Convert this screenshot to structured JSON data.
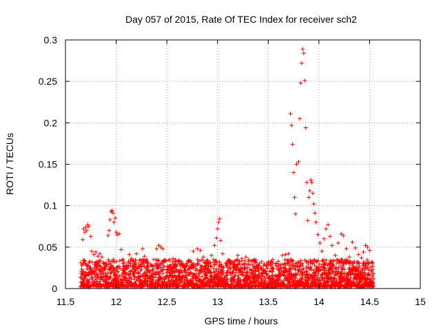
{
  "chart_data": {
    "type": "scatter",
    "title": "Day 057 of 2015, Rate Of TEC Index for receiver sch2",
    "xlabel": "GPS time / hours",
    "ylabel": "ROTI / TECUs",
    "xlim": [
      11.5,
      15
    ],
    "ylim": [
      0,
      0.3
    ],
    "x_ticks": [
      11.5,
      12,
      12.5,
      13,
      13.5,
      14,
      14.5,
      15
    ],
    "x_tick_labels": [
      "11.5",
      "12",
      "12.5",
      "13",
      "13.5",
      "14",
      "14.5",
      "15"
    ],
    "y_ticks": [
      0,
      0.05,
      0.1,
      0.15,
      0.2,
      0.25,
      0.3
    ],
    "y_tick_labels": [
      "0",
      "0.05",
      "0.1",
      "0.15",
      "0.2",
      "0.25",
      "0.3"
    ],
    "grid": true,
    "marker": "plus",
    "marker_color": "#ff0000",
    "series": [
      {
        "name": "ROTI",
        "points": [
          [
            11.66,
            0.028
          ],
          [
            11.67,
            0.059
          ],
          [
            11.68,
            0.072
          ],
          [
            11.69,
            0.068
          ],
          [
            11.7,
            0.074
          ],
          [
            11.71,
            0.07
          ],
          [
            11.72,
            0.077
          ],
          [
            11.73,
            0.075
          ],
          [
            11.75,
            0.063
          ],
          [
            11.76,
            0.045
          ],
          [
            11.78,
            0.041
          ],
          [
            11.8,
            0.044
          ],
          [
            11.82,
            0.039
          ],
          [
            11.84,
            0.042
          ],
          [
            11.86,
            0.038
          ],
          [
            11.88,
            0.03
          ],
          [
            11.9,
            0.026
          ],
          [
            11.92,
            0.064
          ],
          [
            11.93,
            0.07
          ],
          [
            11.94,
            0.083
          ],
          [
            11.95,
            0.093
          ],
          [
            11.96,
            0.094
          ],
          [
            11.97,
            0.091
          ],
          [
            11.98,
            0.08
          ],
          [
            11.99,
            0.085
          ],
          [
            12.0,
            0.068
          ],
          [
            12.01,
            0.065
          ],
          [
            12.03,
            0.066
          ],
          [
            12.05,
            0.047
          ],
          [
            12.07,
            0.035
          ],
          [
            12.1,
            0.028
          ],
          [
            12.13,
            0.041
          ],
          [
            12.15,
            0.036
          ],
          [
            12.18,
            0.03
          ],
          [
            12.2,
            0.042
          ],
          [
            12.23,
            0.034
          ],
          [
            12.26,
            0.048
          ],
          [
            12.28,
            0.039
          ],
          [
            12.31,
            0.032
          ],
          [
            12.34,
            0.029
          ],
          [
            12.37,
            0.035
          ],
          [
            12.4,
            0.048
          ],
          [
            12.42,
            0.052
          ],
          [
            12.44,
            0.05
          ],
          [
            12.46,
            0.048
          ],
          [
            12.49,
            0.033
          ],
          [
            12.52,
            0.025
          ],
          [
            12.56,
            0.036
          ],
          [
            12.6,
            0.028
          ],
          [
            12.64,
            0.03
          ],
          [
            12.68,
            0.022
          ],
          [
            12.72,
            0.033
          ],
          [
            12.76,
            0.045
          ],
          [
            12.8,
            0.048
          ],
          [
            12.83,
            0.046
          ],
          [
            12.86,
            0.038
          ],
          [
            12.9,
            0.03
          ],
          [
            12.94,
            0.04
          ],
          [
            12.97,
            0.052
          ],
          [
            12.99,
            0.061
          ],
          [
            13.0,
            0.072
          ],
          [
            13.01,
            0.08
          ],
          [
            13.02,
            0.084
          ],
          [
            13.03,
            0.058
          ],
          [
            13.05,
            0.042
          ],
          [
            13.08,
            0.03
          ],
          [
            13.12,
            0.025
          ],
          [
            13.16,
            0.032
          ],
          [
            13.2,
            0.04
          ],
          [
            13.24,
            0.036
          ],
          [
            13.28,
            0.038
          ],
          [
            13.32,
            0.029
          ],
          [
            13.36,
            0.035
          ],
          [
            13.4,
            0.028
          ],
          [
            13.45,
            0.022
          ],
          [
            13.5,
            0.03
          ],
          [
            13.55,
            0.024
          ],
          [
            13.6,
            0.027
          ],
          [
            13.64,
            0.04
          ],
          [
            13.67,
            0.041
          ],
          [
            13.7,
            0.042
          ],
          [
            13.72,
            0.211
          ],
          [
            13.73,
            0.197
          ],
          [
            13.74,
            0.174
          ],
          [
            13.75,
            0.14
          ],
          [
            13.76,
            0.11
          ],
          [
            13.77,
            0.09
          ],
          [
            13.78,
            0.15
          ],
          [
            13.8,
            0.153
          ],
          [
            13.81,
            0.205
          ],
          [
            13.82,
            0.248
          ],
          [
            13.83,
            0.272
          ],
          [
            13.84,
            0.289
          ],
          [
            13.85,
            0.284
          ],
          [
            13.86,
            0.251
          ],
          [
            13.87,
            0.194
          ],
          [
            13.88,
            0.128
          ],
          [
            13.89,
            0.082
          ],
          [
            13.9,
            0.11
          ],
          [
            13.91,
            0.118
          ],
          [
            13.92,
            0.131
          ],
          [
            13.93,
            0.128
          ],
          [
            13.94,
            0.115
          ],
          [
            13.95,
            0.102
          ],
          [
            13.96,
            0.091
          ],
          [
            13.97,
            0.08
          ],
          [
            13.99,
            0.065
          ],
          [
            14.01,
            0.055
          ],
          [
            14.03,
            0.045
          ],
          [
            14.05,
            0.06
          ],
          [
            14.07,
            0.072
          ],
          [
            14.09,
            0.077
          ],
          [
            14.11,
            0.063
          ],
          [
            14.13,
            0.052
          ],
          [
            14.16,
            0.04
          ],
          [
            14.19,
            0.055
          ],
          [
            14.22,
            0.066
          ],
          [
            14.24,
            0.064
          ],
          [
            14.27,
            0.048
          ],
          [
            14.3,
            0.038
          ],
          [
            14.33,
            0.056
          ],
          [
            14.36,
            0.049
          ],
          [
            14.39,
            0.041
          ],
          [
            14.42,
            0.037
          ],
          [
            14.44,
            0.044
          ],
          [
            14.46,
            0.052
          ],
          [
            14.48,
            0.05
          ],
          [
            14.5,
            0.046
          ],
          [
            14.52,
            0.032
          ],
          [
            14.53,
            0.03
          ]
        ]
      }
    ],
    "background_band": {
      "x_range": [
        11.65,
        14.54
      ],
      "y_range": [
        0.002,
        0.035
      ],
      "density": "dense"
    }
  }
}
